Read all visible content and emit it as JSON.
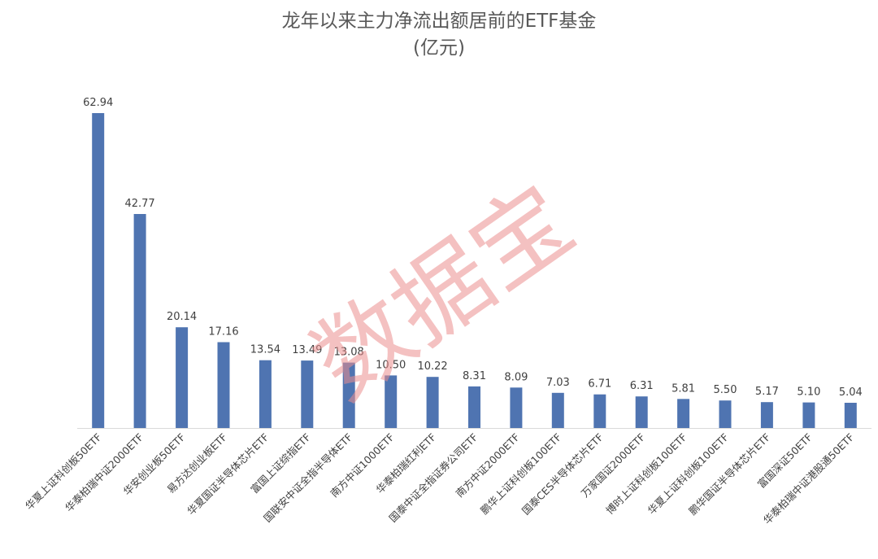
{
  "chart_data": {
    "type": "bar",
    "title": "龙年以来主力净流出额居前的ETF基金",
    "subtitle": "(亿元)",
    "xlabel": "",
    "ylabel": "",
    "ylim": [
      0,
      62.94
    ],
    "grid": false,
    "legend": "none",
    "bar_color": "#4f74b1",
    "categories": [
      "华夏上证科创板50ETF",
      "华泰柏瑞中证2000ETF",
      "华安创业板50ETF",
      "易方达创业板ETF",
      "华夏国证半导体芯片ETF",
      "富国上证综指ETF",
      "国联安中证全指半导体ETF",
      "南方中证1000ETF",
      "华泰柏瑞红利ETF",
      "国泰中证全指证券公司ETF",
      "南方中证2000ETF",
      "鹏华上证科创板100ETF",
      "国泰CES半导体芯片ETF",
      "万家国证2000ETF",
      "博时上证科创板100ETF",
      "华夏上证科创板100ETF",
      "鹏华国证半导体芯片ETF",
      "富国深证50ETF",
      "华泰柏瑞中证港股通50ETF"
    ],
    "values": [
      62.94,
      42.77,
      20.14,
      17.16,
      13.54,
      13.49,
      13.08,
      10.5,
      10.22,
      8.31,
      8.09,
      7.03,
      6.71,
      6.31,
      5.81,
      5.5,
      5.17,
      5.1,
      5.04
    ],
    "value_labels": [
      "62.94",
      "42.77",
      "20.14",
      "17.16",
      "13.54",
      "13.49",
      "13.08",
      "10.50",
      "10.22",
      "8.31",
      "8.09",
      "7.03",
      "6.71",
      "6.31",
      "5.81",
      "5.50",
      "5.17",
      "5.10",
      "5.04"
    ]
  },
  "watermark": {
    "text": "数据宝",
    "color": "#ec8f8f"
  }
}
